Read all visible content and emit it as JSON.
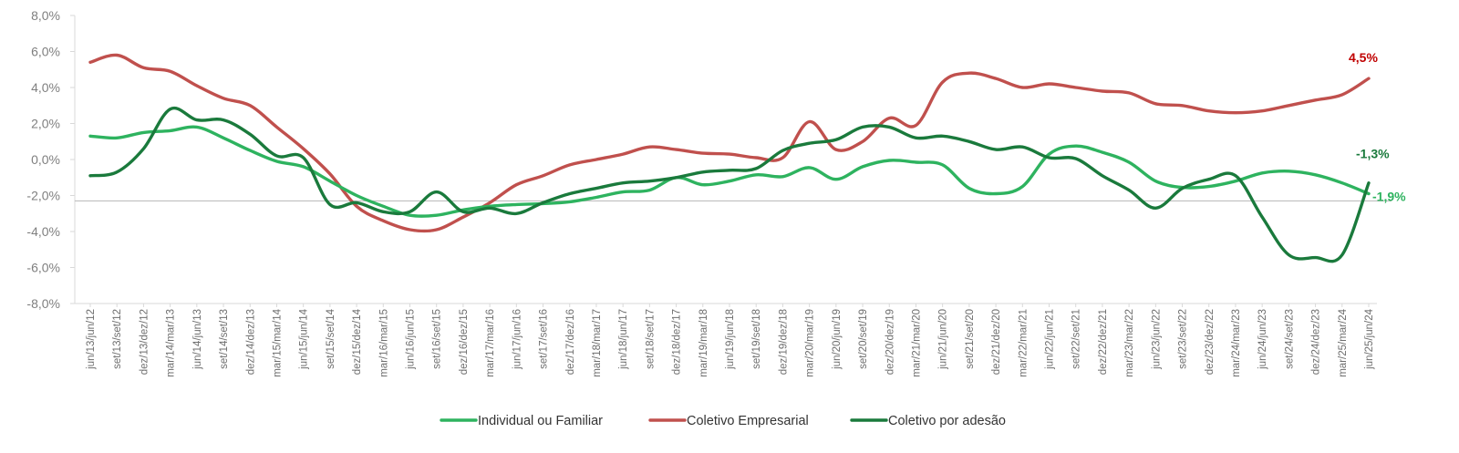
{
  "chart_data": {
    "type": "line",
    "title": "",
    "xlabel": "",
    "ylabel": "",
    "ylim": [
      -8,
      8
    ],
    "yticks": [
      "8,0%",
      "6,0%",
      "4,0%",
      "2,0%",
      "0,0%",
      "-2,0%",
      "-4,0%",
      "-6,0%",
      "-8,0%"
    ],
    "ytick_values": [
      8,
      6,
      4,
      2,
      0,
      -2,
      -4,
      -6,
      -8
    ],
    "reference_line": -2.3,
    "grid": false,
    "legend_position": "bottom",
    "categories": [
      "jun/13/jun/12",
      "set/13/set/12",
      "dez/13/dez/12",
      "mar/14/mar/13",
      "jun/14/jun/13",
      "set/14/set/13",
      "dez/14/dez/13",
      "mar/15/mar/14",
      "jun/15/jun/14",
      "set/15/set/14",
      "dez/15/dez/14",
      "mar/16/mar/15",
      "jun/16/jun/15",
      "set/16/set/15",
      "dez/16/dez/15",
      "mar/17/mar/16",
      "jun/17/jun/16",
      "set/17/set/16",
      "dez/17/dez/16",
      "mar/18/mar/17",
      "jun/18/jun/17",
      "set/18/set/17",
      "dez/18/dez/17",
      "mar/19/mar/18",
      "jun/19/jun/18",
      "set/19/set/18",
      "dez/19/dez/18",
      "mar/20/mar/19",
      "jun/20/jun/19",
      "set/20/set/19",
      "dez/20/dez/19",
      "mar/21/mar/20",
      "jun/21/jun/20",
      "set/21/set/20",
      "dez/21/dez/20",
      "mar/22/mar/21",
      "jun/22/jun/21",
      "set/22/set/21",
      "dez/22/dez/21",
      "mar/23/mar/22",
      "jun/23/jun/22",
      "set/23/set/22",
      "dez/23/dez/22",
      "mar/24/mar/23",
      "jun/24/jun/23",
      "set/24/set/23",
      "dez/24/dez/23",
      "mar/25/mar/24",
      "jun/25/jun/24"
    ],
    "series": [
      {
        "name": "Individual ou Familiar",
        "color": "#2eb35f",
        "values": [
          1.3,
          1.2,
          1.5,
          1.6,
          1.8,
          1.2,
          0.5,
          -0.1,
          -0.4,
          -1.2,
          -2.0,
          -2.6,
          -3.1,
          -3.1,
          -2.8,
          -2.6,
          -2.5,
          -2.45,
          -2.35,
          -2.1,
          -1.8,
          -1.7,
          -1.0,
          -1.4,
          -1.2,
          -0.85,
          -0.95,
          -0.45,
          -1.1,
          -0.4,
          -0.05,
          -0.15,
          -0.3,
          -1.6,
          -1.9,
          -1.5,
          0.3,
          0.75,
          0.4,
          -0.15,
          -1.2,
          -1.55,
          -1.5,
          -1.2,
          -0.75,
          -0.65,
          -0.85,
          -1.3,
          -1.9
        ]
      },
      {
        "name": "Coletivo Empresarial",
        "color": "#c0504d",
        "values": [
          5.4,
          5.8,
          5.1,
          4.9,
          4.1,
          3.4,
          3.0,
          1.8,
          0.6,
          -0.8,
          -2.6,
          -3.4,
          -3.9,
          -3.9,
          -3.2,
          -2.4,
          -1.4,
          -0.9,
          -0.3,
          0.0,
          0.3,
          0.7,
          0.55,
          0.35,
          0.3,
          0.1,
          0.1,
          2.1,
          0.55,
          1.0,
          2.3,
          1.9,
          4.3,
          4.8,
          4.5,
          4.0,
          4.2,
          4.0,
          3.8,
          3.7,
          3.1,
          3.0,
          2.7,
          2.6,
          2.7,
          3.0,
          3.3,
          3.6,
          4.5
        ]
      },
      {
        "name": "Coletivo por adesão",
        "color": "#1a7a3c",
        "values": [
          -0.9,
          -0.7,
          0.6,
          2.8,
          2.2,
          2.2,
          1.4,
          0.2,
          0.1,
          -2.5,
          -2.4,
          -2.9,
          -2.9,
          -1.8,
          -2.9,
          -2.7,
          -3.0,
          -2.4,
          -1.9,
          -1.6,
          -1.3,
          -1.2,
          -1.0,
          -0.7,
          -0.6,
          -0.5,
          0.5,
          0.9,
          1.1,
          1.8,
          1.8,
          1.2,
          1.3,
          1.0,
          0.55,
          0.7,
          0.1,
          0.05,
          -0.9,
          -1.7,
          -2.7,
          -1.6,
          -1.1,
          -0.9,
          -3.2,
          -5.3,
          -5.45,
          -5.3,
          -1.3
        ]
      }
    ],
    "end_labels": [
      {
        "series": "Coletivo Empresarial",
        "text": "4,5%",
        "color": "#c00000"
      },
      {
        "series": "Coletivo por adesão",
        "text": "-1,3%",
        "color": "#1a7a3c"
      },
      {
        "series": "Individual ou Familiar",
        "text": "-1,9%",
        "color": "#2eb35f"
      }
    ]
  }
}
